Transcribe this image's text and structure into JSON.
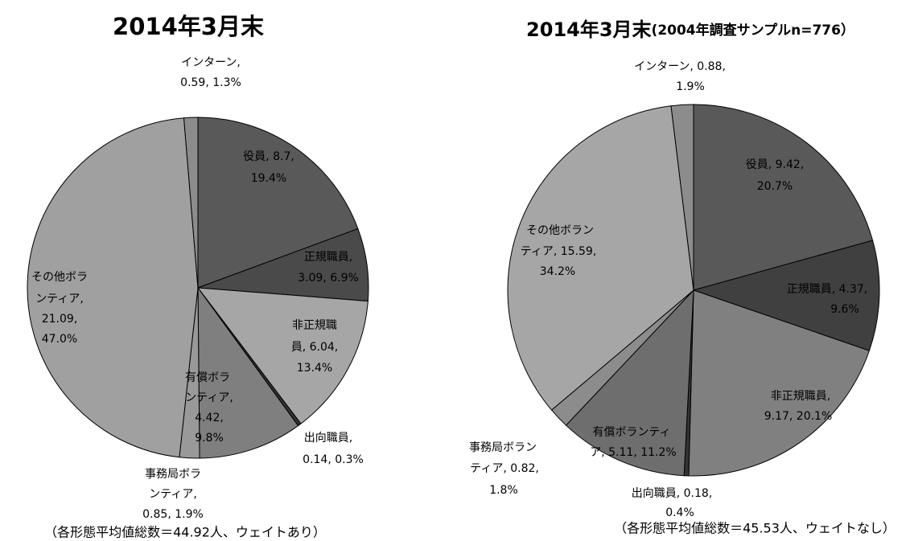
{
  "chart_data": [
    {
      "type": "pie",
      "title": "2014年3月末",
      "values": [
        8.7,
        3.09,
        6.04,
        0.14,
        4.42,
        0.85,
        21.09,
        0.59
      ],
      "labels": [
        [
          "役員, 8.7,",
          "19.4%"
        ],
        [
          "正規職員,",
          "3.09, 6.9%"
        ],
        [
          "非正規職",
          "員, 6.04,",
          "13.4%"
        ],
        [
          "出向職員,",
          "0.14, 0.3%"
        ],
        [
          "有償ボラ",
          "ンティア,",
          "4.42,",
          "9.8%"
        ],
        [
          "事務局ボラ",
          "ンティア,",
          "0.85, 1.9%"
        ],
        [
          "その他ボラ",
          "ンティア,",
          "21.09,",
          "47.0%"
        ],
        [
          "インターン,",
          "0.59, 1.3%"
        ]
      ],
      "colors": [
        "#595959",
        "#4a4a4a",
        "#a6a6a6",
        "#333333",
        "#7f7f7f",
        "#999999",
        "#a0a0a0",
        "#8c8c8c"
      ],
      "footnote": "（各形態平均値総数＝44.92人、ウェイトあり）"
    },
    {
      "type": "pie",
      "title": "2014年3月末",
      "subtitle": "(2004年調査サンプルn=776）",
      "values": [
        9.42,
        4.37,
        9.17,
        0.18,
        5.11,
        0.82,
        15.59,
        0.88
      ],
      "labels": [
        [
          "役員, 9.42,",
          "20.7%"
        ],
        [
          "正規職員, 4.37,",
          "9.6%"
        ],
        [
          "非正規職員,",
          "9.17, 20.1%"
        ],
        [
          "出向職員, 0.18,",
          "0.4%"
        ],
        [
          "有償ボランティ",
          "ア, 5.11, 11.2%"
        ],
        [
          "事務局ボラン",
          "ティア, 0.82,",
          "1.8%"
        ],
        [
          "その他ボラン",
          "ティア, 15.59,",
          "34.2%"
        ],
        [
          "インターン, 0.88,",
          "1.9%"
        ]
      ],
      "colors": [
        "#595959",
        "#404040",
        "#808080",
        "#333333",
        "#6e6e6e",
        "#8c8c8c",
        "#a6a6a6",
        "#8c8c8c"
      ],
      "footnote": "（各形態平均値総数＝45.53人、ウェイトなし）"
    }
  ]
}
